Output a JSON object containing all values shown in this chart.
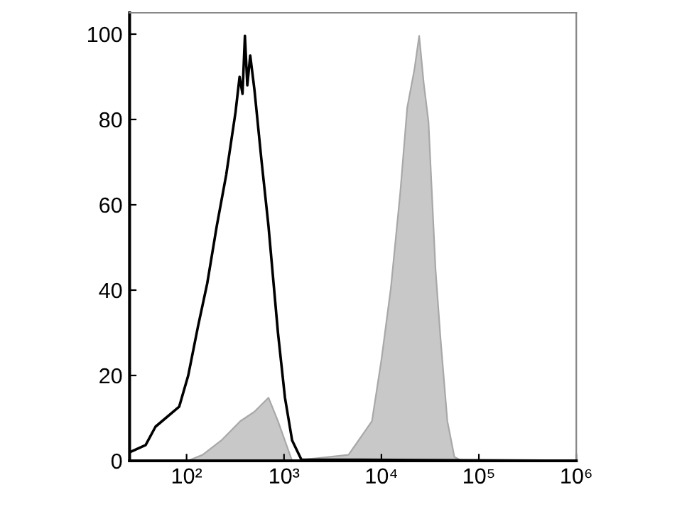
{
  "chart_data": {
    "type": "line",
    "log": "x",
    "xlim": [
      26,
      1000000
    ],
    "ylim": [
      0,
      105
    ],
    "xticks": [
      {
        "value": 100,
        "label": "10²"
      },
      {
        "value": 1000,
        "label": "10³"
      },
      {
        "value": 10000,
        "label": "10⁴"
      },
      {
        "value": 100000,
        "label": "10⁵"
      },
      {
        "value": 1000000,
        "label": "10⁶"
      }
    ],
    "yticks": [
      0,
      20,
      40,
      60,
      80,
      100
    ],
    "grid": false,
    "legend": false,
    "series": [
      {
        "type": "area",
        "color": "#c8c8c8",
        "x": [
          103,
          146,
          228,
          356,
          497,
          693,
          867,
          1211,
          4590,
          8000,
          10000,
          12500,
          15600,
          18400,
          21800,
          24400,
          27200,
          30400,
          35900,
          40200,
          47500,
          56100,
          66400,
          1000000
        ],
        "values": [
          0,
          1.4,
          4.8,
          9.3,
          11.5,
          14.8,
          9.3,
          0,
          1.4,
          9.3,
          23.7,
          40.5,
          62.8,
          82.8,
          91.7,
          99.6,
          88.4,
          79.5,
          44.9,
          29.3,
          9.3,
          0.9,
          0,
          0
        ]
      },
      {
        "type": "line",
        "color": "#000000",
        "x": [
          26,
          38,
          48,
          84,
          104,
          131,
          163,
          204,
          255,
          318,
          350,
          375,
          397,
          420,
          450,
          497,
          586,
          693,
          867,
          1023,
          1211,
          1507,
          1000000
        ],
        "values": [
          2,
          3.7,
          8,
          12.7,
          20,
          31.5,
          41.6,
          55,
          67,
          81.7,
          90,
          86,
          99.6,
          88,
          95,
          87,
          70.6,
          55,
          30,
          14.8,
          4.8,
          0.3,
          0
        ]
      }
    ]
  }
}
